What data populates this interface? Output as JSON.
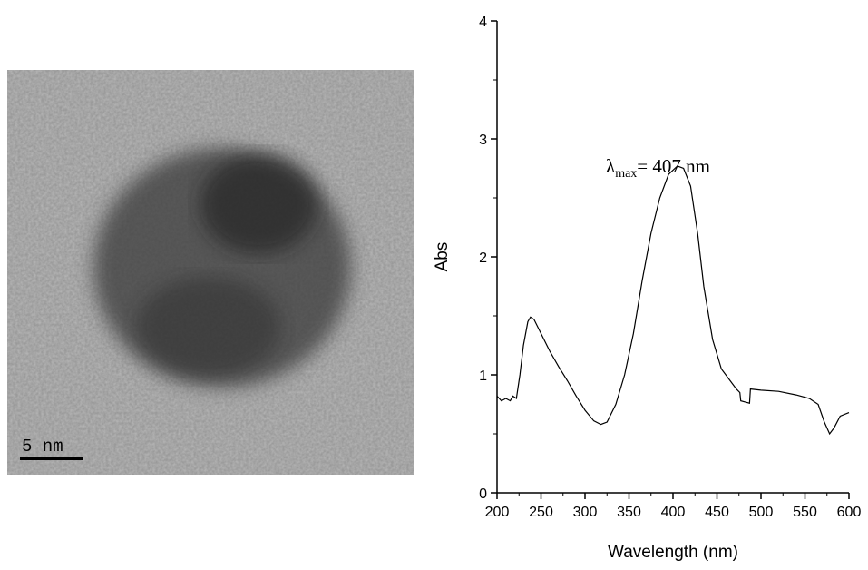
{
  "image": {
    "scale_bar_label": "5 nm"
  },
  "chart_data": {
    "type": "line",
    "x_label": "Wavelength (nm)",
    "y_label": "Abs",
    "annotation": {
      "symbol": "λ",
      "subscript": "max",
      "text": "= 407 nm"
    },
    "color": "#000000",
    "x": [
      200,
      205,
      210,
      215,
      218,
      222,
      226,
      230,
      235,
      238,
      242,
      250,
      260,
      270,
      280,
      290,
      300,
      310,
      318,
      325,
      335,
      345,
      355,
      365,
      375,
      385,
      395,
      405,
      412,
      420,
      428,
      435,
      445,
      455,
      465,
      472,
      476,
      477,
      482,
      487,
      488,
      500,
      520,
      540,
      555,
      565,
      572,
      578,
      583,
      590,
      600
    ],
    "values": [
      0.82,
      0.78,
      0.8,
      0.78,
      0.82,
      0.8,
      1.0,
      1.25,
      1.45,
      1.49,
      1.47,
      1.35,
      1.2,
      1.07,
      0.95,
      0.82,
      0.7,
      0.61,
      0.58,
      0.6,
      0.75,
      1.0,
      1.35,
      1.8,
      2.2,
      2.5,
      2.7,
      2.77,
      2.75,
      2.6,
      2.2,
      1.75,
      1.3,
      1.05,
      0.95,
      0.88,
      0.85,
      0.78,
      0.77,
      0.76,
      0.88,
      0.87,
      0.86,
      0.83,
      0.8,
      0.75,
      0.6,
      0.5,
      0.55,
      0.65,
      0.68
    ],
    "xlim": [
      200,
      600
    ],
    "xticks": [
      200,
      250,
      300,
      350,
      400,
      450,
      500,
      550,
      600
    ],
    "xminorticks": [
      225,
      275,
      325,
      375,
      425,
      475,
      525,
      575
    ],
    "ylim": [
      0,
      4
    ],
    "yticks": [
      0,
      1,
      2,
      3,
      4
    ],
    "yminorticks": [
      0.5,
      1.5,
      2.5,
      3.5
    ]
  }
}
